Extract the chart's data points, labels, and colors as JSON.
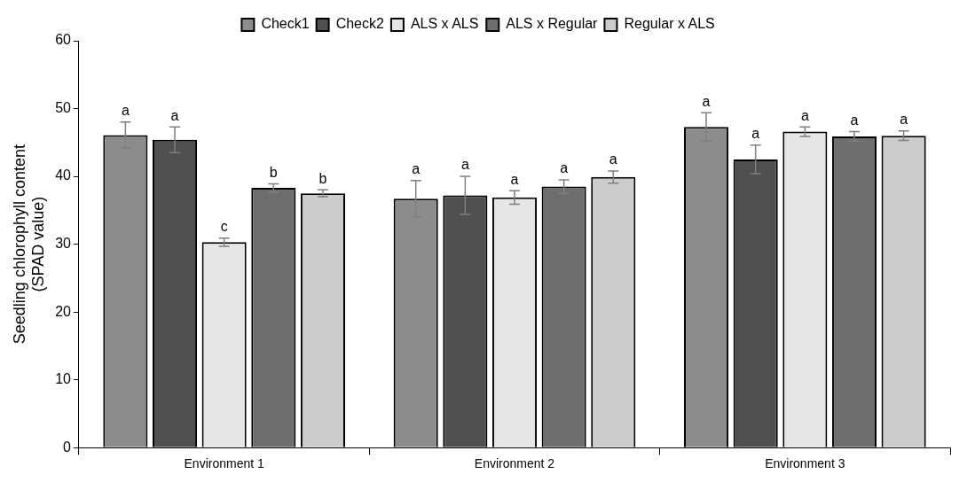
{
  "chart_data": {
    "type": "bar",
    "ylabel": "Seedling chlorophyll content\n(SPAD value)",
    "categories": [
      "Environment 1",
      "Environment 2",
      "Environment 3"
    ],
    "series": [
      {
        "name": "Check1",
        "color": "#8c8c8c",
        "values": [
          46.1,
          36.7,
          47.3
        ],
        "errors": [
          1.9,
          2.7,
          2.1
        ],
        "value_labels": [
          "a",
          "a",
          "a"
        ]
      },
      {
        "name": "Check2",
        "color": "#505050",
        "values": [
          45.4,
          37.2,
          42.5
        ],
        "errors": [
          1.9,
          2.8,
          2.1
        ],
        "value_labels": [
          "a",
          "a",
          "a"
        ]
      },
      {
        "name": "ALS x ALS",
        "color": "#e6e6e6",
        "values": [
          30.3,
          36.9,
          46.6
        ],
        "errors": [
          0.6,
          1.0,
          0.7
        ],
        "value_labels": [
          "c",
          "a",
          "a"
        ]
      },
      {
        "name": "ALS x Regular",
        "color": "#6e6e6e",
        "values": [
          38.3,
          38.5,
          45.9
        ],
        "errors": [
          0.6,
          1.0,
          0.7
        ],
        "value_labels": [
          "b",
          "a",
          "a"
        ]
      },
      {
        "name": "Regular x ALS",
        "color": "#cccccc",
        "values": [
          37.5,
          39.9,
          46.0
        ],
        "errors": [
          0.5,
          0.9,
          0.7
        ],
        "value_labels": [
          "b",
          "a",
          "a"
        ]
      }
    ],
    "ylim": [
      0,
      60
    ],
    "yticks": [
      0,
      10,
      20,
      30,
      40,
      50,
      60
    ],
    "grid": false,
    "legend": "top"
  }
}
